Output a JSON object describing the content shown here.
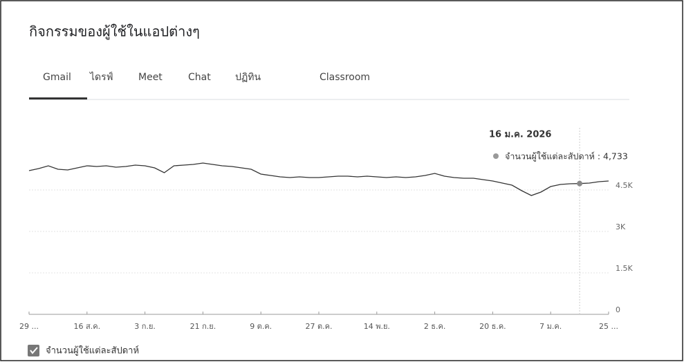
{
  "title": "กิจกรรมของผู้ใช้ในแอปต่างๆ",
  "tabs": [
    "Gmail",
    "ไดรฟ์",
    "Meet",
    "Chat",
    "ปฏิทิน",
    "Classroom"
  ],
  "chart_data": {
    "type": "line",
    "categories": [
      "29 ...",
      null,
      null,
      null,
      null,
      null,
      "16 ส.ค.",
      null,
      null,
      null,
      null,
      null,
      "3 ก.ย.",
      null,
      null,
      null,
      null,
      null,
      "21 ก.ย.",
      null,
      null,
      null,
      null,
      null,
      "9 ต.ค.",
      null,
      null,
      null,
      null,
      null,
      "27 ต.ค.",
      null,
      null,
      null,
      null,
      null,
      "14 พ.ย.",
      null,
      null,
      null,
      null,
      null,
      "2 ธ.ค.",
      null,
      null,
      null,
      null,
      null,
      "20 ธ.ค.",
      null,
      null,
      null,
      null,
      null,
      "7 ม.ค.",
      null,
      null,
      null,
      null,
      null,
      "25 ..."
    ],
    "series": [
      {
        "name": "จำนวนผู้ใช้แต่ละสัปดาห์",
        "color": "#333333",
        "values": [
          5200,
          5275,
          5375,
          5250,
          5225,
          5300,
          5375,
          5350,
          5375,
          5325,
          5350,
          5400,
          5375,
          5300,
          5125,
          5375,
          5400,
          5425,
          5475,
          5425,
          5375,
          5350,
          5300,
          5250,
          5075,
          5025,
          4975,
          4950,
          4975,
          4950,
          4950,
          4975,
          5000,
          5000,
          4975,
          5000,
          4975,
          4950,
          4975,
          4950,
          4975,
          5025,
          5100,
          5000,
          4950,
          4925,
          4925,
          4875,
          4825,
          4750,
          4675,
          4475,
          4300,
          4425,
          4625,
          4700,
          4725,
          4733,
          4750,
          4800,
          4825
        ]
      }
    ],
    "ylim": [
      0,
      7000
    ],
    "yticks": [
      0,
      {
        "value": 1500,
        "label": "1.5K"
      },
      {
        "value": 3000,
        "label": "3K"
      },
      {
        "value": 4500,
        "label": "4.5K"
      }
    ],
    "grid": true,
    "tooltip": {
      "title": "16 ม.ค. 2026",
      "text": "จำนวนผู้ใช้แต่ละสัปดาห์ : 4,733"
    }
  }
}
